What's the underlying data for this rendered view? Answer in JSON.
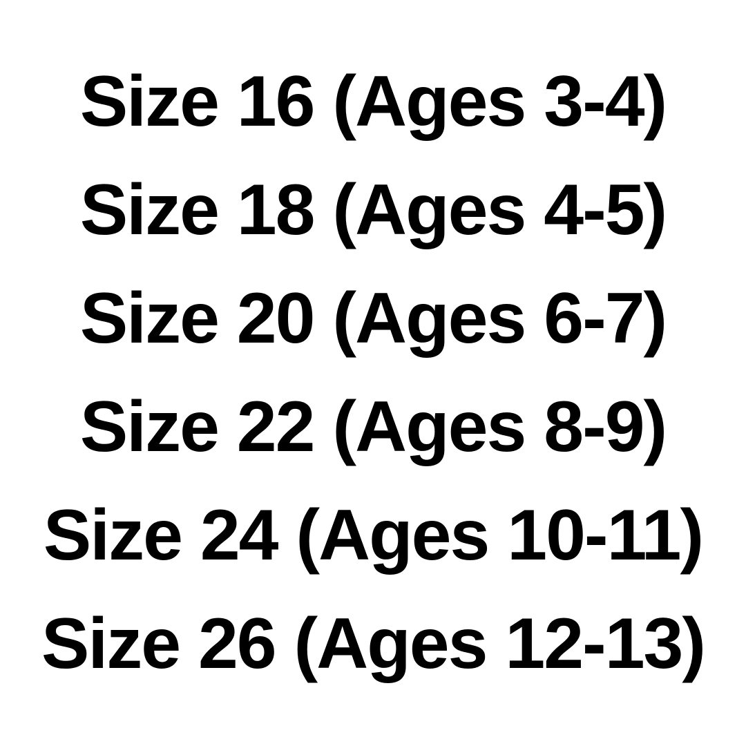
{
  "page": {
    "background_color": "#ffffff",
    "text_color": "#000000"
  },
  "size_list": {
    "items": [
      {
        "label": "Size 16 (Ages 3-4)"
      },
      {
        "label": "Size 18 (Ages 4-5)"
      },
      {
        "label": "Size 20 (Ages 6-7)"
      },
      {
        "label": "Size 22 (Ages 8-9)"
      },
      {
        "label": "Size 24 (Ages 10-11)"
      },
      {
        "label": "Size 26 (Ages 12-13)"
      }
    ]
  }
}
